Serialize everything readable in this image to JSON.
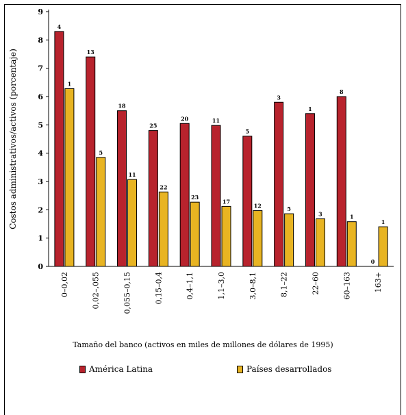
{
  "chart_data": {
    "type": "bar",
    "ylabel": "Costos administrativos/activos (porcentaje)",
    "xlabel": "Tamaño del banco (activos en miles de millones de dólares de 1995)",
    "ylim": [
      0,
      9
    ],
    "yticks": [
      "0",
      "1",
      "2",
      "3",
      "4",
      "5",
      "6",
      "7",
      "8",
      "9"
    ],
    "categories": [
      "0–0,02",
      "0,02–,055",
      "0,055–0,15",
      "0,15–0,4",
      "0,4–1,1",
      "1,1–3,0",
      "3,0–8,1",
      "8,1–22",
      "22–60",
      "60–163",
      "163+"
    ],
    "series": [
      {
        "name": "América Latina",
        "color": "#b8232d",
        "values": [
          8.3,
          7.4,
          5.5,
          4.8,
          5.05,
          4.98,
          4.6,
          5.8,
          5.4,
          6.0,
          null
        ],
        "labels": [
          "4",
          "13",
          "18",
          "25",
          "20",
          "11",
          "5",
          "3",
          "1",
          "8",
          "0"
        ]
      },
      {
        "name": "Países desarrollados",
        "color": "#e8b422",
        "values": [
          6.28,
          3.85,
          3.07,
          2.63,
          2.27,
          2.12,
          1.97,
          1.86,
          1.68,
          1.58,
          1.4
        ],
        "labels": [
          "1",
          "5",
          "11",
          "22",
          "23",
          "17",
          "12",
          "5",
          "3",
          "1",
          "1"
        ]
      }
    ]
  }
}
